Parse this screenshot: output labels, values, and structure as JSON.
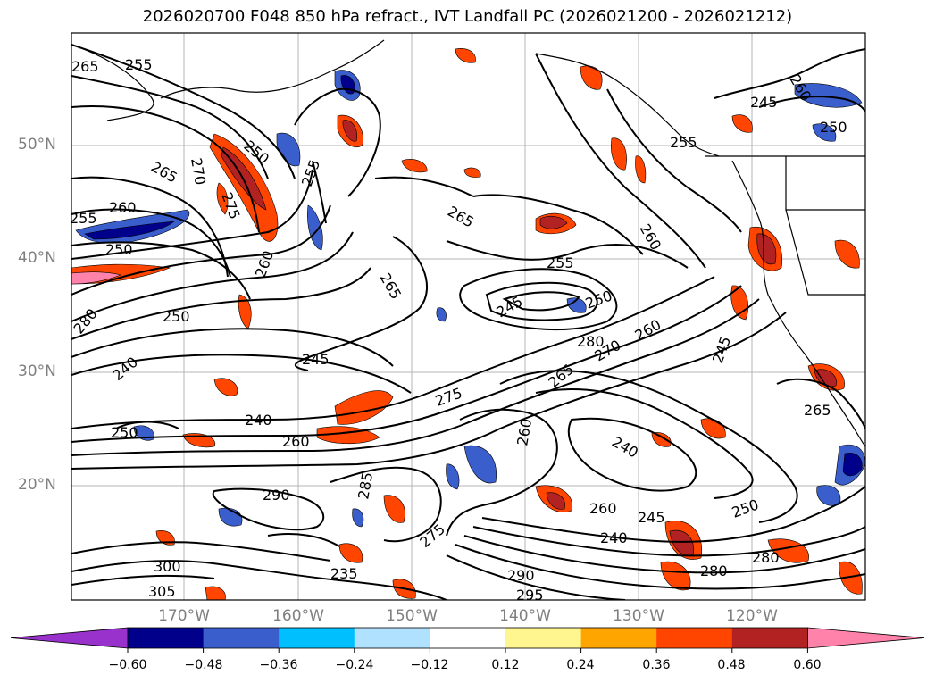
{
  "title": "2026020700 F048 850 hPa refract., IVT Landfall PC (2026021200 - 2026021212)",
  "lat_labels": [
    "50°N",
    "40°N",
    "30°N",
    "20°N"
  ],
  "lon_labels": [
    "170°W",
    "160°W",
    "150°W",
    "140°W",
    "130°W",
    "120°W"
  ],
  "contour_labels": [
    "265",
    "255",
    "270",
    "250",
    "265",
    "260",
    "255",
    "250",
    "280",
    "275",
    "260",
    "250",
    "240",
    "245",
    "240",
    "250",
    "260",
    "265",
    "255",
    "245",
    "265",
    "250",
    "255",
    "260",
    "245",
    "280",
    "270",
    "260",
    "275",
    "265",
    "260",
    "240",
    "290",
    "285",
    "280",
    "275",
    "245",
    "250",
    "240",
    "260",
    "290",
    "280",
    "295",
    "235",
    "300",
    "305",
    "255",
    "260",
    "265",
    "250",
    "245"
  ],
  "colorbar": {
    "tick_labels": [
      "−0.60",
      "−0.48",
      "−0.36",
      "−0.24",
      "−0.12",
      "0.12",
      "0.24",
      "0.36",
      "0.48",
      "0.60"
    ],
    "colors": [
      "#9932cc",
      "#00008b",
      "#3a5fcd",
      "#00bfff",
      "#b0e2ff",
      "#ffffff",
      "#fff68f",
      "#ffa500",
      "#ff4500",
      "#b22222",
      "#ff82ab"
    ]
  },
  "colors": {
    "neg_strong": "#00008b",
    "neg_mid": "#3a5fcd",
    "neg_light": "#00bfff",
    "pos_light": "#ffa500",
    "pos_mid": "#ff4500",
    "pos_strong": "#b22222",
    "pos_max": "#ff82ab",
    "yellow": "#fff68f"
  }
}
